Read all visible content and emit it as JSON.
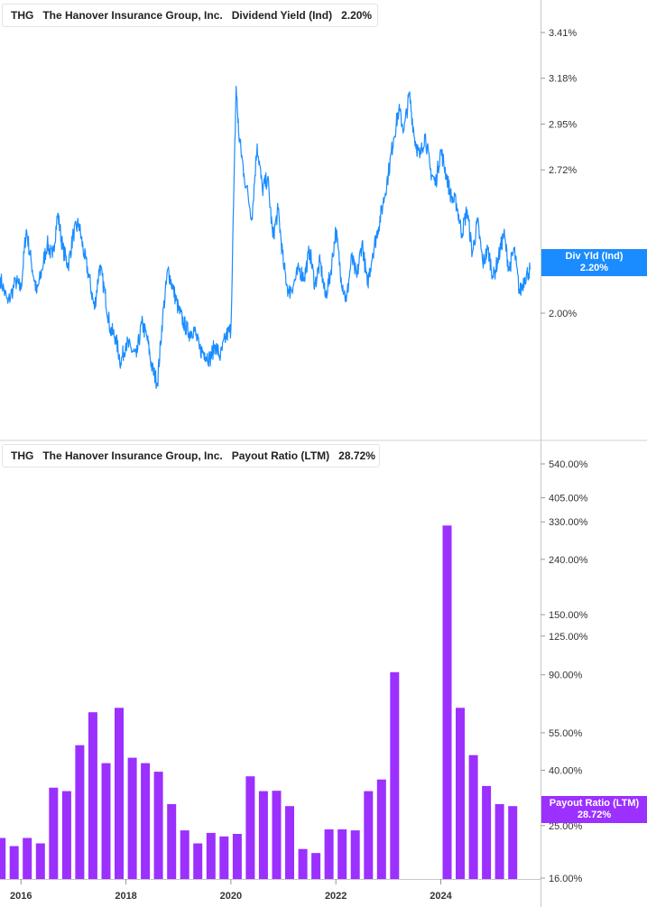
{
  "top_panel": {
    "ticker": "THG",
    "company": "The Hanover Insurance Group, Inc.",
    "metric": "Dividend Yield (Ind)",
    "value": "2.20%",
    "tag_line1": "Div Yld (Ind)",
    "tag_line2": "2.20%",
    "color": "#1a8cff"
  },
  "bottom_panel": {
    "ticker": "THG",
    "company": "The Hanover Insurance Group, Inc.",
    "metric": "Payout Ratio (LTM)",
    "value": "28.72%",
    "tag_line1": "Payout Ratio (LTM)",
    "tag_line2": "28.72%",
    "color": "#9b30ff"
  },
  "chart_data": [
    {
      "type": "line",
      "title": "THG The Hanover Insurance Group, Inc. Dividend Yield (Ind)",
      "y_ticks": [
        "3.41%",
        "3.18%",
        "2.95%",
        "2.72%",
        "2.00%"
      ],
      "y_tick_values": [
        3.41,
        3.18,
        2.95,
        2.72,
        2.0
      ],
      "x_range": [
        2015.6,
        2025.9
      ],
      "ylim": [
        1.55,
        3.62
      ],
      "last_value": 2.2,
      "series": [
        {
          "x": [
            2015.6,
            2015.75,
            2015.9,
            2016.0,
            2016.1,
            2016.2,
            2016.3,
            2016.4,
            2016.5,
            2016.6,
            2016.7,
            2016.8,
            2016.9,
            2017.0,
            2017.1,
            2017.2,
            2017.3,
            2017.4,
            2017.5,
            2017.6,
            2017.7,
            2017.8,
            2017.9,
            2018.0,
            2018.1,
            2018.2,
            2018.3,
            2018.4,
            2018.5,
            2018.6,
            2018.7,
            2018.8,
            2018.9,
            2019.0,
            2019.1,
            2019.2,
            2019.3,
            2019.4,
            2019.5,
            2019.6,
            2019.7,
            2019.8,
            2019.9,
            2020.0,
            2020.1,
            2020.15,
            2020.25,
            2020.4,
            2020.5,
            2020.6,
            2020.7,
            2020.8,
            2020.9,
            2021.0,
            2021.1,
            2021.2,
            2021.3,
            2021.4,
            2021.5,
            2021.6,
            2021.7,
            2021.8,
            2021.9,
            2022.0,
            2022.1,
            2022.2,
            2022.3,
            2022.4,
            2022.5,
            2022.6,
            2022.7,
            2022.8,
            2022.9,
            2023.0,
            2023.1,
            2023.2,
            2023.3,
            2023.4,
            2023.5,
            2023.6,
            2023.7,
            2023.8,
            2023.9,
            2024.0,
            2024.1,
            2024.2,
            2024.3,
            2024.4,
            2024.5,
            2024.6,
            2024.7,
            2024.8,
            2024.9,
            2025.0,
            2025.1,
            2025.2,
            2025.3,
            2025.4,
            2025.5,
            2025.6,
            2025.7
          ],
          "values": [
            2.18,
            2.05,
            2.16,
            2.12,
            2.42,
            2.25,
            2.1,
            2.22,
            2.35,
            2.28,
            2.5,
            2.32,
            2.24,
            2.4,
            2.45,
            2.3,
            2.18,
            2.02,
            2.24,
            2.1,
            1.92,
            1.88,
            1.75,
            1.85,
            1.82,
            1.78,
            1.95,
            1.88,
            1.72,
            1.65,
            1.98,
            2.22,
            2.12,
            2.02,
            1.95,
            1.9,
            1.92,
            1.82,
            1.8,
            1.77,
            1.84,
            1.78,
            1.88,
            1.92,
            3.14,
            2.9,
            2.7,
            2.48,
            2.85,
            2.62,
            2.68,
            2.38,
            2.52,
            2.25,
            2.1,
            2.15,
            2.22,
            2.18,
            2.32,
            2.14,
            2.26,
            2.08,
            2.2,
            2.42,
            2.18,
            2.06,
            2.28,
            2.18,
            2.36,
            2.14,
            2.3,
            2.42,
            2.55,
            2.7,
            2.88,
            3.02,
            2.92,
            3.1,
            2.88,
            2.78,
            2.9,
            2.72,
            2.65,
            2.82,
            2.7,
            2.58,
            2.55,
            2.4,
            2.52,
            2.3,
            2.46,
            2.25,
            2.32,
            2.18,
            2.28,
            2.4,
            2.22,
            2.32,
            2.1,
            2.18,
            2.22
          ]
        }
      ]
    },
    {
      "type": "bar",
      "title": "THG The Hanover Insurance Group, Inc. Payout Ratio (LTM)",
      "y_scale": "log",
      "y_ticks": [
        "540.00%",
        "405.00%",
        "330.00%",
        "240.00%",
        "150.00%",
        "125.00%",
        "90.00%",
        "55.00%",
        "40.00%",
        "25.00%",
        "16.00%"
      ],
      "y_tick_values": [
        540,
        405,
        330,
        240,
        150,
        125,
        90,
        55,
        40,
        25,
        16
      ],
      "x_ticks": [
        "2016",
        "2018",
        "2020",
        "2022",
        "2024"
      ],
      "x_tick_values": [
        2016,
        2018,
        2020,
        2022,
        2024
      ],
      "x_range": [
        2015.6,
        2025.9
      ],
      "ylim": [
        16,
        610
      ],
      "last_value": 28.72,
      "series": [
        {
          "x": [
            2015.62,
            2015.87,
            2016.12,
            2016.37,
            2016.62,
            2016.87,
            2017.12,
            2017.37,
            2017.62,
            2017.87,
            2018.12,
            2018.37,
            2018.62,
            2018.87,
            2019.12,
            2019.37,
            2019.62,
            2019.87,
            2020.12,
            2020.37,
            2020.62,
            2020.87,
            2021.12,
            2021.37,
            2021.62,
            2021.87,
            2022.12,
            2022.37,
            2022.62,
            2022.87,
            2023.12,
            2023.37,
            2023.62,
            2023.87,
            2024.12,
            2024.37,
            2024.62,
            2024.87,
            2025.12,
            2025.37
          ],
          "values": [
            22.5,
            21.0,
            22.5,
            21.5,
            34.5,
            33.5,
            49.5,
            65.5,
            42.5,
            68.0,
            44.5,
            42.5,
            39.5,
            30.0,
            24.0,
            21.5,
            23.5,
            22.8,
            23.3,
            38.0,
            33.5,
            33.6,
            29.5,
            20.5,
            19.8,
            24.2,
            24.2,
            24.0,
            33.5,
            37.0,
            92.0,
            null,
            null,
            null,
            320.0,
            68.0,
            45.5,
            35.0,
            30.0,
            29.5
          ]
        }
      ]
    }
  ]
}
